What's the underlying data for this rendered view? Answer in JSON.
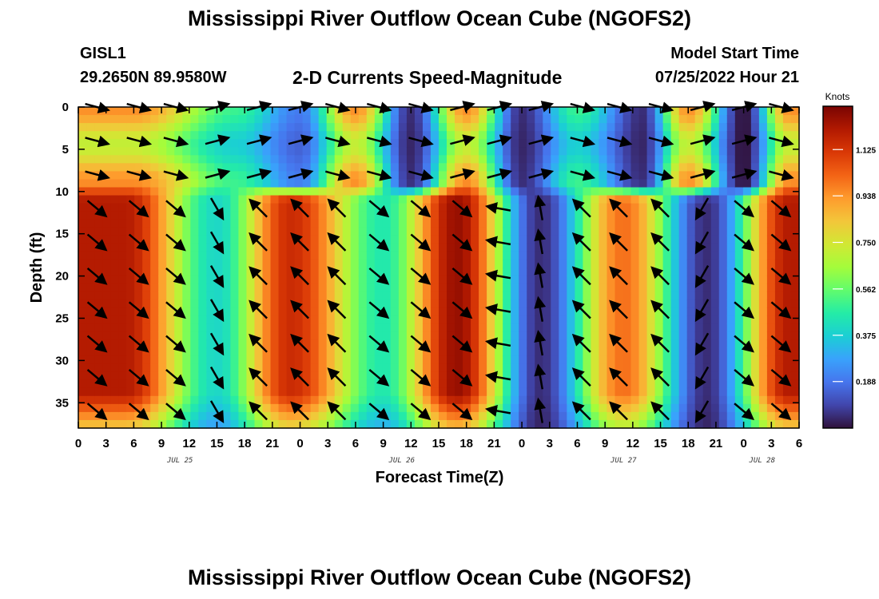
{
  "header": {
    "title": "Mississippi River Outflow Ocean Cube (NGOFS2)",
    "station": "GISL1",
    "lat_lon": "29.2650N  89.9580W",
    "subtitle": "2-D Currents Speed-Magnitude",
    "model_start_label": "Model Start Time",
    "model_start_value": "07/25/2022 Hour 21"
  },
  "footer": {
    "title": "Mississippi River Outflow Ocean Cube (NGOFS2)"
  },
  "colors": {
    "colormap": [
      "#30123b",
      "#4145ab",
      "#4675ed",
      "#39a2fc",
      "#1bcfd4",
      "#24eca6",
      "#61fc6c",
      "#a4fc3b",
      "#d1e834",
      "#f3c63a",
      "#fe9b2d",
      "#f36315",
      "#d93806",
      "#b11901",
      "#7a0402"
    ],
    "arrow": "#000000"
  },
  "chart_data": {
    "type": "heatmap",
    "xlabel": "Forecast Time(Z)",
    "ylabel": "Depth (ft)",
    "colorbar_label": "Knots",
    "x_ticks": [
      "0",
      "3",
      "6",
      "9",
      "12",
      "15",
      "18",
      "21",
      "0",
      "3",
      "6",
      "9",
      "12",
      "15",
      "18",
      "21",
      "0",
      "3",
      "6",
      "9",
      "12",
      "15",
      "18",
      "21",
      "0",
      "3",
      "6"
    ],
    "x_hours_range": [
      0,
      78
    ],
    "day_labels": [
      {
        "label": "JUL 25",
        "hour": 11
      },
      {
        "label": "JUL 26",
        "hour": 35
      },
      {
        "label": "JUL 27",
        "hour": 59
      },
      {
        "label": "JUL 28",
        "hour": 74
      }
    ],
    "y_ticks": [
      0,
      5,
      10,
      15,
      20,
      25,
      30,
      35
    ],
    "ylim": [
      0,
      38
    ],
    "y_inverted": true,
    "colorbar_ticks": [
      "1.125",
      "0.938",
      "0.750",
      "0.562",
      "0.375",
      "0.188"
    ],
    "colorbar_range": [
      0,
      1.3
    ],
    "surface_layer": {
      "depth_max_ft": 10,
      "peaks": [
        {
          "hour": 6,
          "speed": 0.95
        },
        {
          "hour": 17,
          "speed": 0.5
        },
        {
          "hour": 30,
          "speed": 0.95
        },
        {
          "hour": 42,
          "speed": 0.95
        },
        {
          "hour": 54,
          "speed": 0.5
        },
        {
          "hour": 66,
          "speed": 0.95
        },
        {
          "hour": 77,
          "speed": 0.95
        }
      ],
      "minima": [
        {
          "hour": 24,
          "speed": 0.2
        },
        {
          "hour": 36,
          "speed": 0.05
        },
        {
          "hour": 48,
          "speed": 0.05
        },
        {
          "hour": 61,
          "speed": 0.05
        },
        {
          "hour": 72,
          "speed": 0.0
        }
      ]
    },
    "lower_layer": {
      "depth_min_ft": 10,
      "peaks": [
        {
          "hour": 5,
          "speed": 1.2
        },
        {
          "hour": 23,
          "speed": 1.15
        },
        {
          "hour": 41,
          "speed": 1.25
        },
        {
          "hour": 59,
          "speed": 1.0
        },
        {
          "hour": 77,
          "speed": 1.2
        }
      ],
      "minima": [
        {
          "hour": 15,
          "speed": 0.4
        },
        {
          "hour": 33,
          "speed": 0.45
        },
        {
          "hour": 50,
          "speed": 0.05
        },
        {
          "hour": 68,
          "speed": 0.05
        }
      ]
    },
    "vector_hours": [
      2,
      6.5,
      10.5,
      15,
      19.5,
      24,
      28,
      32.5,
      37,
      41.5,
      45.5,
      50,
      54.5,
      58.5,
      63,
      67.5,
      72,
      76
    ],
    "vector_depths": [
      0,
      4,
      8,
      12,
      16,
      20,
      24,
      28,
      32,
      36
    ],
    "vector_surface_angles_deg": [
      15,
      15,
      15,
      -15,
      -15,
      -15,
      15,
      15,
      15,
      -15,
      -15,
      -15,
      15,
      15,
      15,
      -15,
      -15,
      15
    ],
    "vector_lower_angles_deg": [
      40,
      40,
      40,
      60,
      -135,
      -135,
      -135,
      40,
      40,
      40,
      190,
      260,
      -135,
      -135,
      -135,
      120,
      40,
      40
    ]
  }
}
